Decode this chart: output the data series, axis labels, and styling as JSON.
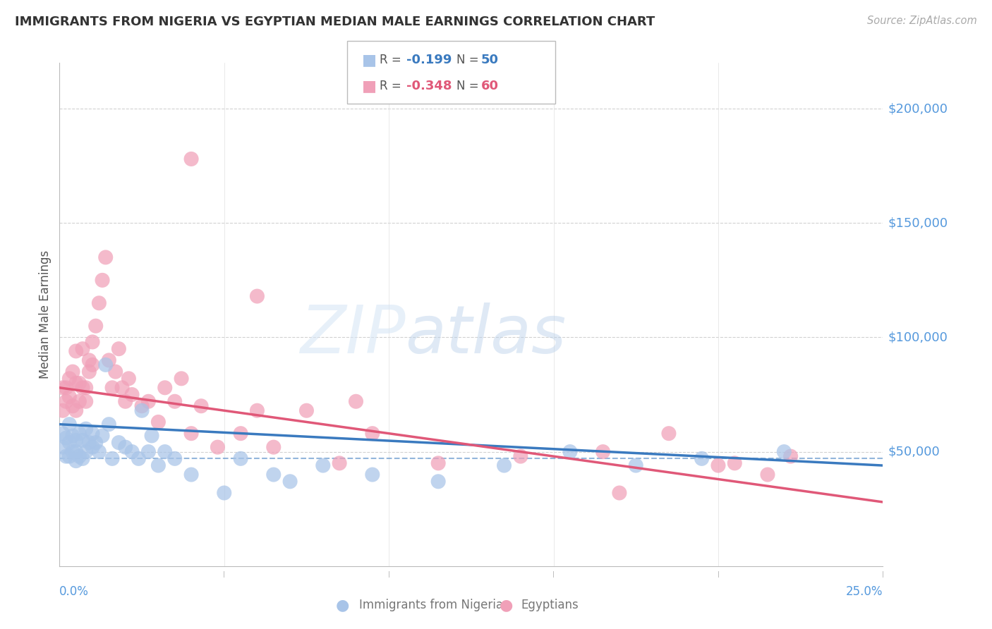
{
  "title": "IMMIGRANTS FROM NIGERIA VS EGYPTIAN MEDIAN MALE EARNINGS CORRELATION CHART",
  "source": "Source: ZipAtlas.com",
  "ylabel": "Median Male Earnings",
  "xlim": [
    0.0,
    0.25
  ],
  "ylim": [
    0,
    220000
  ],
  "yticks": [
    50000,
    100000,
    150000,
    200000
  ],
  "ytick_labels": [
    "$50,000",
    "$100,000",
    "$150,000",
    "$200,000"
  ],
  "background_color": "#ffffff",
  "grid_color": "#cccccc",
  "nigeria_color": "#a8c4e8",
  "egypt_color": "#f0a0b8",
  "nigeria_R": -0.199,
  "nigeria_N": 50,
  "egypt_R": -0.348,
  "egypt_N": 60,
  "nigeria_line_color": "#3a7abf",
  "egypt_line_color": "#e05878",
  "nigeria_scatter_x": [
    0.001,
    0.001,
    0.002,
    0.002,
    0.003,
    0.003,
    0.003,
    0.004,
    0.004,
    0.005,
    0.005,
    0.005,
    0.006,
    0.006,
    0.007,
    0.007,
    0.008,
    0.008,
    0.009,
    0.01,
    0.01,
    0.011,
    0.012,
    0.013,
    0.014,
    0.015,
    0.016,
    0.018,
    0.02,
    0.022,
    0.024,
    0.025,
    0.027,
    0.028,
    0.03,
    0.032,
    0.035,
    0.04,
    0.05,
    0.055,
    0.065,
    0.07,
    0.08,
    0.095,
    0.115,
    0.135,
    0.155,
    0.175,
    0.195,
    0.22
  ],
  "nigeria_scatter_y": [
    58000,
    52000,
    56000,
    48000,
    62000,
    54000,
    48000,
    57000,
    50000,
    55000,
    50000,
    46000,
    58000,
    48000,
    55000,
    47000,
    60000,
    50000,
    54000,
    52000,
    58000,
    54000,
    50000,
    57000,
    88000,
    62000,
    47000,
    54000,
    52000,
    50000,
    47000,
    68000,
    50000,
    57000,
    44000,
    50000,
    47000,
    40000,
    32000,
    47000,
    40000,
    37000,
    44000,
    40000,
    37000,
    44000,
    50000,
    44000,
    47000,
    50000
  ],
  "egypt_scatter_x": [
    0.001,
    0.001,
    0.002,
    0.002,
    0.003,
    0.003,
    0.004,
    0.004,
    0.005,
    0.005,
    0.005,
    0.006,
    0.006,
    0.007,
    0.007,
    0.008,
    0.008,
    0.009,
    0.009,
    0.01,
    0.01,
    0.011,
    0.012,
    0.013,
    0.014,
    0.015,
    0.016,
    0.017,
    0.018,
    0.019,
    0.02,
    0.021,
    0.022,
    0.025,
    0.027,
    0.03,
    0.032,
    0.035,
    0.037,
    0.04,
    0.043,
    0.048,
    0.055,
    0.06,
    0.065,
    0.075,
    0.085,
    0.095,
    0.115,
    0.14,
    0.165,
    0.185,
    0.2,
    0.215,
    0.222,
    0.04,
    0.06,
    0.09,
    0.17,
    0.205
  ],
  "egypt_scatter_y": [
    68000,
    78000,
    72000,
    78000,
    82000,
    74000,
    85000,
    70000,
    80000,
    68000,
    94000,
    80000,
    72000,
    95000,
    78000,
    72000,
    78000,
    85000,
    90000,
    88000,
    98000,
    105000,
    115000,
    125000,
    135000,
    90000,
    78000,
    85000,
    95000,
    78000,
    72000,
    82000,
    75000,
    70000,
    72000,
    63000,
    78000,
    72000,
    82000,
    58000,
    70000,
    52000,
    58000,
    68000,
    52000,
    68000,
    45000,
    58000,
    45000,
    48000,
    50000,
    58000,
    44000,
    40000,
    48000,
    178000,
    118000,
    72000,
    32000,
    45000
  ]
}
